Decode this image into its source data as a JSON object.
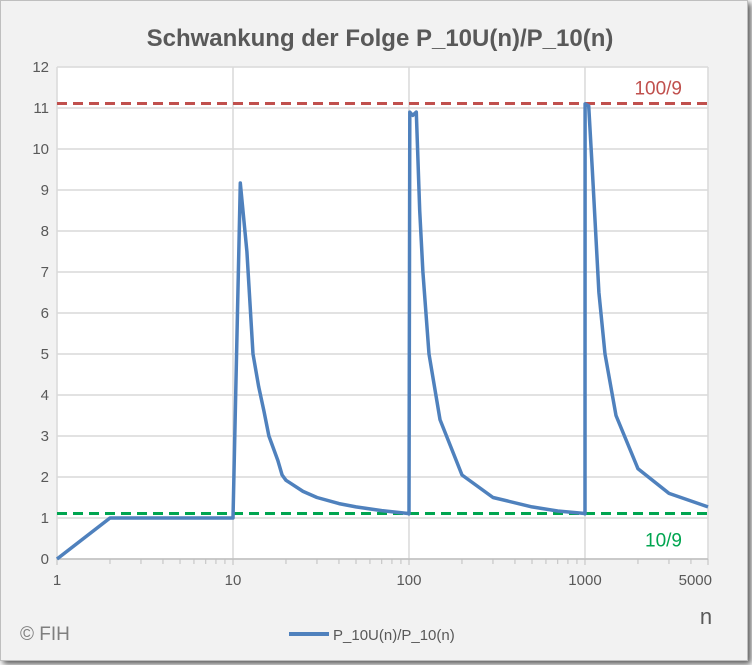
{
  "chart_data": {
    "type": "line",
    "title": "Schwankung der Folge P_10U(n)/P_10(n)",
    "xlabel": "n",
    "ylabel": "",
    "xscale": "log",
    "xlim": [
      1,
      5000
    ],
    "ylim": [
      0,
      12
    ],
    "x_ticks": [
      "1",
      "10",
      "100",
      "1000",
      "5000"
    ],
    "x_tick_values": [
      1,
      10,
      100,
      1000,
      5000
    ],
    "y_ticks": [
      "0",
      "1",
      "2",
      "3",
      "4",
      "5",
      "6",
      "7",
      "8",
      "9",
      "10",
      "11",
      "12"
    ],
    "grid": true,
    "legend": "bottom-center",
    "series": [
      {
        "name": "P_10U(n)/P_10(n)",
        "color": "#4f81bd",
        "points": [
          [
            1,
            0
          ],
          [
            2,
            1
          ],
          [
            10,
            1
          ],
          [
            11,
            9.17
          ],
          [
            12,
            7.5
          ],
          [
            13,
            5.0
          ],
          [
            14,
            4.2
          ],
          [
            15,
            3.6
          ],
          [
            16,
            3.0
          ],
          [
            18,
            2.4
          ],
          [
            19,
            2.05
          ],
          [
            20,
            1.92
          ],
          [
            21,
            1.86
          ],
          [
            25,
            1.65
          ],
          [
            30,
            1.5
          ],
          [
            40,
            1.35
          ],
          [
            50,
            1.27
          ],
          [
            70,
            1.18
          ],
          [
            99,
            1.11
          ],
          [
            100,
            1.1
          ],
          [
            101,
            10.9
          ],
          [
            105,
            10.82
          ],
          [
            110,
            10.9
          ],
          [
            115,
            8.5
          ],
          [
            120,
            7.0
          ],
          [
            130,
            5.0
          ],
          [
            150,
            3.4
          ],
          [
            200,
            2.05
          ],
          [
            300,
            1.5
          ],
          [
            500,
            1.27
          ],
          [
            700,
            1.17
          ],
          [
            999,
            1.11
          ],
          [
            1000,
            1.1
          ],
          [
            1001,
            11.1
          ],
          [
            1050,
            11.05
          ],
          [
            1100,
            9.5
          ],
          [
            1200,
            6.5
          ],
          [
            1300,
            5.0
          ],
          [
            1500,
            3.5
          ],
          [
            2000,
            2.2
          ],
          [
            3000,
            1.6
          ],
          [
            5000,
            1.27
          ]
        ]
      }
    ],
    "reference_lines": [
      {
        "label": "100/9",
        "value": 11.111,
        "color": "#c0504d"
      },
      {
        "label": "10/9",
        "value": 1.111,
        "color": "#00a550"
      }
    ],
    "annotations": [
      "© FIH"
    ]
  }
}
